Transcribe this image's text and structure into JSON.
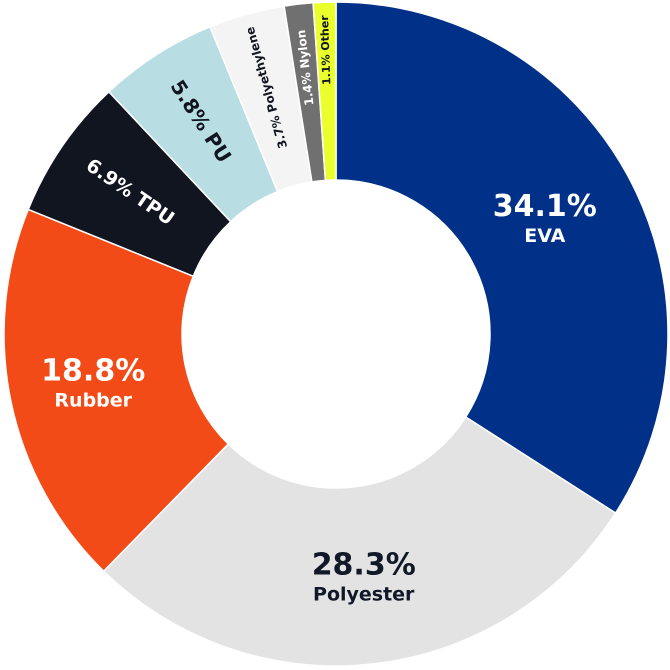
{
  "chart_data": {
    "type": "pie",
    "donut": true,
    "title": "",
    "slices": [
      {
        "name": "EVA",
        "value": 34.1,
        "pct_label": "34.1%",
        "color": "#003087",
        "text_color": "#ffffff"
      },
      {
        "name": "Polyester",
        "value": 28.3,
        "pct_label": "28.3%",
        "color": "#e3e3e3",
        "text_color": "#111827"
      },
      {
        "name": "Rubber",
        "value": 18.8,
        "pct_label": "18.8%",
        "color": "#f24b17",
        "text_color": "#ffffff"
      },
      {
        "name": "TPU",
        "value": 6.9,
        "pct_label": "6.9%",
        "color": "#111520",
        "text_color": "#ffffff"
      },
      {
        "name": "PU",
        "value": 5.8,
        "pct_label": "5.8%",
        "color": "#b8dde2",
        "text_color": "#111520"
      },
      {
        "name": "Polyethylene",
        "value": 3.7,
        "pct_label": "3.7%",
        "color": "#f4f4f4",
        "text_color": "#111520"
      },
      {
        "name": "Nylon",
        "value": 1.4,
        "pct_label": "1.4%",
        "color": "#707070",
        "text_color": "#ffffff"
      },
      {
        "name": "Other",
        "value": 1.1,
        "pct_label": "1.1%",
        "color": "#eaff2b",
        "text_color": "#111520"
      }
    ]
  }
}
